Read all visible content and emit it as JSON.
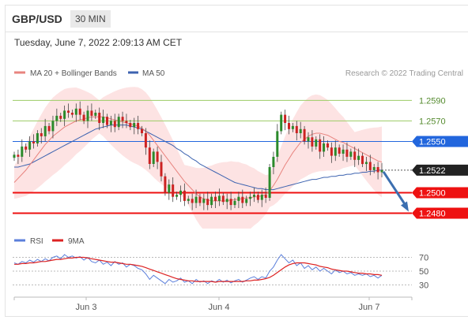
{
  "header": {
    "pair": "GBP/USD",
    "timeframe": "30 MIN"
  },
  "timestamp": "Tuesday, June 7, 2022 2:09:13 AM CET",
  "colors": {
    "ma20": "#e8847f",
    "ma50": "#3d63b0",
    "band_fill": "#fde3e3",
    "bull": "#2b8a2b",
    "bear": "#cc2222",
    "resistance": "#9ccc65",
    "support": "#ee1111",
    "blue_level": "#2266dd",
    "rsi": "#5b7fdb",
    "rsi_ma": "#dd2222",
    "arrow": "#3c6fb0"
  },
  "legend": {
    "ma20": "MA 20 + Bollinger Bands",
    "ma50": "MA 50",
    "credit": "Research © 2022 Trading Central"
  },
  "rsi_legend": {
    "rsi": "RSI",
    "ma": "9MA"
  },
  "chart_data": [
    {
      "type": "candlestick",
      "ylim": [
        1.2465,
        1.2608
      ],
      "levels": [
        {
          "value": 1.259,
          "label": "1.2590",
          "kind": "resistance"
        },
        {
          "value": 1.257,
          "label": "1.2570",
          "kind": "resistance"
        },
        {
          "value": 1.255,
          "label": "1.2550",
          "kind": "pivot"
        },
        {
          "value": 1.2522,
          "label": "1.2522",
          "kind": "last"
        },
        {
          "value": 1.25,
          "label": "1.2500",
          "kind": "support"
        },
        {
          "value": 1.248,
          "label": "1.2480",
          "kind": "support"
        }
      ],
      "close": [
        1.2537,
        1.2535,
        1.2545,
        1.2542,
        1.255,
        1.2548,
        1.2558,
        1.2555,
        1.2565,
        1.256,
        1.257,
        1.2575,
        1.2572,
        1.258,
        1.2578,
        1.2576,
        1.2582,
        1.2576,
        1.257,
        1.258,
        1.2575,
        1.2578,
        1.2568,
        1.2574,
        1.2566,
        1.257,
        1.2564,
        1.2574,
        1.257,
        1.2568,
        1.2564,
        1.2568,
        1.2562,
        1.2558,
        1.2544,
        1.2528,
        1.254,
        1.253,
        1.2516,
        1.25,
        1.2508,
        1.2496,
        1.2498,
        1.2502,
        1.2492,
        1.2494,
        1.249,
        1.2496,
        1.249,
        1.2494,
        1.2488,
        1.2496,
        1.2492,
        1.2497,
        1.2491,
        1.2494,
        1.2488,
        1.2492,
        1.2496,
        1.249,
        1.2494,
        1.2496,
        1.2498,
        1.2493,
        1.2498,
        1.2495,
        1.2525,
        1.2535,
        1.256,
        1.2576,
        1.2568,
        1.2562,
        1.2565,
        1.2558,
        1.2562,
        1.255,
        1.2554,
        1.2545,
        1.2552,
        1.254,
        1.2548,
        1.2544,
        1.2536,
        1.2544,
        1.2538,
        1.2542,
        1.2535,
        1.254,
        1.2532,
        1.2536,
        1.2528,
        1.253,
        1.2522,
        1.2525,
        1.252,
        1.2522
      ],
      "ma20": [
        1.251,
        1.2514,
        1.2518,
        1.2522,
        1.2527,
        1.2532,
        1.2537,
        1.2542,
        1.2547,
        1.2551,
        1.2555,
        1.2558,
        1.2561,
        1.2564,
        1.2566,
        1.2568,
        1.257,
        1.2571,
        1.2572,
        1.2573,
        1.2574,
        1.2574,
        1.2574,
        1.2574,
        1.2573,
        1.2572,
        1.2571,
        1.257,
        1.2569,
        1.2568,
        1.2567,
        1.2566,
        1.2565,
        1.2563,
        1.256,
        1.2556,
        1.2551,
        1.2546,
        1.2541,
        1.2536,
        1.2531,
        1.2526,
        1.2521,
        1.2516,
        1.2511,
        1.2507,
        1.2503,
        1.2499,
        1.2496,
        1.2494,
        1.2493,
        1.2492,
        1.2492,
        1.2492,
        1.2492,
        1.2492,
        1.2493,
        1.2493,
        1.2494,
        1.2494,
        1.2495,
        1.2495,
        1.2496,
        1.2496,
        1.2497,
        1.2498,
        1.2502,
        1.2507,
        1.2513,
        1.252,
        1.2527,
        1.2533,
        1.2539,
        1.2544,
        1.2549,
        1.2552,
        1.2555,
        1.2557,
        1.2558,
        1.2558,
        1.2557,
        1.2556,
        1.2554,
        1.2552,
        1.255,
        1.2549,
        1.2547,
        1.2545,
        1.2543,
        1.2541,
        1.2539,
        1.2537,
        1.2535,
        1.2533,
        1.2531,
        1.253
      ],
      "ma50": [
        1.2525,
        1.2525,
        1.2526,
        1.2527,
        1.2528,
        1.253,
        1.2532,
        1.2534,
        1.2536,
        1.2538,
        1.254,
        1.2542,
        1.2544,
        1.2546,
        1.2548,
        1.255,
        1.2552,
        1.2554,
        1.2556,
        1.2558,
        1.256,
        1.2562,
        1.2563,
        1.2564,
        1.2565,
        1.2566,
        1.2566,
        1.2566,
        1.2566,
        1.2566,
        1.2565,
        1.2564,
        1.2563,
        1.2562,
        1.256,
        1.2558,
        1.2556,
        1.2554,
        1.2552,
        1.255,
        1.2548,
        1.2546,
        1.2543,
        1.2541,
        1.2538,
        1.2536,
        1.2533,
        1.2531,
        1.2528,
        1.2526,
        1.2524,
        1.2522,
        1.252,
        1.2518,
        1.2516,
        1.2514,
        1.2512,
        1.251,
        1.2509,
        1.2508,
        1.2507,
        1.2506,
        1.2505,
        1.2504,
        1.2504,
        1.2503,
        1.2503,
        1.2503,
        1.2504,
        1.2505,
        1.2506,
        1.2507,
        1.2508,
        1.2509,
        1.251,
        1.2511,
        1.2512,
        1.2513,
        1.2513,
        1.2514,
        1.2515,
        1.2515,
        1.2516,
        1.2516,
        1.2517,
        1.2517,
        1.2518,
        1.2518,
        1.2519,
        1.2519,
        1.252,
        1.252,
        1.2521,
        1.2521,
        1.2522,
        1.2522
      ],
      "forecast": {
        "from": 1.2522,
        "to": 1.248
      }
    },
    {
      "type": "line",
      "ylim": [
        18,
        82
      ],
      "levels": [
        70,
        50,
        30
      ],
      "rsi": [
        62,
        60,
        64,
        62,
        66,
        63,
        67,
        64,
        68,
        65,
        70,
        72,
        68,
        74,
        70,
        72,
        69,
        71,
        66,
        70,
        64,
        62,
        66,
        60,
        63,
        58,
        64,
        60,
        62,
        56,
        60,
        58,
        54,
        52,
        46,
        38,
        44,
        40,
        36,
        32,
        38,
        34,
        36,
        40,
        34,
        36,
        32,
        38,
        34,
        36,
        32,
        36,
        34,
        38,
        34,
        37,
        33,
        36,
        38,
        34,
        37,
        40,
        42,
        38,
        42,
        40,
        50,
        56,
        66,
        74,
        68,
        62,
        66,
        58,
        62,
        54,
        58,
        52,
        56,
        50,
        54,
        50,
        46,
        52,
        48,
        50,
        46,
        48,
        44,
        46,
        44,
        46,
        42,
        44,
        40,
        44
      ],
      "ma9": [
        60,
        60,
        61,
        61,
        62,
        62,
        63,
        64,
        64,
        65,
        66,
        67,
        67,
        68,
        69,
        69,
        70,
        70,
        70,
        69,
        68,
        67,
        66,
        65,
        64,
        63,
        63,
        62,
        61,
        60,
        60,
        59,
        58,
        57,
        55,
        53,
        51,
        49,
        47,
        45,
        43,
        41,
        39,
        38,
        37,
        36,
        36,
        35,
        35,
        35,
        35,
        35,
        34,
        35,
        35,
        35,
        35,
        35,
        35,
        35,
        36,
        36,
        37,
        37,
        38,
        39,
        41,
        44,
        48,
        52,
        56,
        59,
        61,
        62,
        62,
        62,
        61,
        60,
        59,
        57,
        56,
        55,
        53,
        52,
        51,
        50,
        50,
        49,
        48,
        47,
        47,
        46,
        46,
        45,
        45,
        44
      ]
    }
  ],
  "x_axis": {
    "labels": [
      "Jun 3",
      "Jun 4",
      "Jun 7"
    ]
  }
}
